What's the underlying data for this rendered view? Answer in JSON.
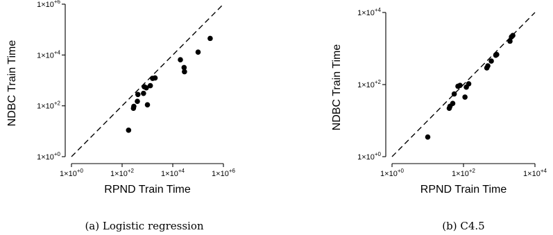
{
  "chart_data": [
    {
      "type": "scatter",
      "title": "",
      "caption": "(a) Logistic regression",
      "xlabel": "RPND Train Time",
      "ylabel": "NDBC Train Time",
      "scale": "log10",
      "xlim": [
        1,
        1000000
      ],
      "ylim": [
        1,
        1000000
      ],
      "xticks": [
        {
          "value": 1,
          "label_base": "1×10",
          "label_exp": "+0"
        },
        {
          "value": 100,
          "label_base": "1×10",
          "label_exp": "+2"
        },
        {
          "value": 10000,
          "label_base": "1×10",
          "label_exp": "+4"
        },
        {
          "value": 1000000,
          "label_base": "1×10",
          "label_exp": "+6"
        }
      ],
      "yticks": [
        {
          "value": 1,
          "label_base": "1×10",
          "label_exp": "+0"
        },
        {
          "value": 100,
          "label_base": "1×10",
          "label_exp": "+2"
        },
        {
          "value": 10000,
          "label_base": "1×10",
          "label_exp": "+4"
        },
        {
          "value": 1000000,
          "label_base": "1×10",
          "label_exp": "+6"
        }
      ],
      "reference_line": "y = x (dashed)",
      "points": [
        {
          "x": 180,
          "y": 11
        },
        {
          "x": 280,
          "y": 80
        },
        {
          "x": 290,
          "y": 95
        },
        {
          "x": 400,
          "y": 150
        },
        {
          "x": 420,
          "y": 280
        },
        {
          "x": 700,
          "y": 310
        },
        {
          "x": 750,
          "y": 560
        },
        {
          "x": 900,
          "y": 510
        },
        {
          "x": 1000,
          "y": 110
        },
        {
          "x": 1300,
          "y": 620
        },
        {
          "x": 1600,
          "y": 1200
        },
        {
          "x": 2000,
          "y": 1250
        },
        {
          "x": 20000,
          "y": 6500
        },
        {
          "x": 28000,
          "y": 3200
        },
        {
          "x": 29000,
          "y": 2200
        },
        {
          "x": 100000,
          "y": 13000
        },
        {
          "x": 300000,
          "y": 45000
        }
      ]
    },
    {
      "type": "scatter",
      "title": "",
      "caption": "(b) C4.5",
      "xlabel": "RPND Train Time",
      "ylabel": "NDBC Train Time",
      "scale": "log10",
      "xlim": [
        1,
        10000
      ],
      "ylim": [
        1,
        10000
      ],
      "xticks": [
        {
          "value": 1,
          "label_base": "1×10",
          "label_exp": "+0"
        },
        {
          "value": 100,
          "label_base": "1×10",
          "label_exp": "+2"
        },
        {
          "value": 10000,
          "label_base": "1×10",
          "label_exp": "+4"
        }
      ],
      "yticks": [
        {
          "value": 1,
          "label_base": "1×10",
          "label_exp": "+0"
        },
        {
          "value": 100,
          "label_base": "1×10",
          "label_exp": "+2"
        },
        {
          "value": 10000,
          "label_base": "1×10",
          "label_exp": "+4"
        }
      ],
      "reference_line": "y = x (dashed)",
      "points": [
        {
          "x": 10,
          "y": 3.5
        },
        {
          "x": 40,
          "y": 22
        },
        {
          "x": 42,
          "y": 25
        },
        {
          "x": 50,
          "y": 30
        },
        {
          "x": 55,
          "y": 55
        },
        {
          "x": 70,
          "y": 90
        },
        {
          "x": 80,
          "y": 95
        },
        {
          "x": 110,
          "y": 45
        },
        {
          "x": 120,
          "y": 85
        },
        {
          "x": 140,
          "y": 105
        },
        {
          "x": 450,
          "y": 290
        },
        {
          "x": 480,
          "y": 330
        },
        {
          "x": 600,
          "y": 450
        },
        {
          "x": 800,
          "y": 650
        },
        {
          "x": 850,
          "y": 680
        },
        {
          "x": 2000,
          "y": 1600
        },
        {
          "x": 2200,
          "y": 2100
        },
        {
          "x": 2400,
          "y": 2300
        }
      ]
    }
  ]
}
